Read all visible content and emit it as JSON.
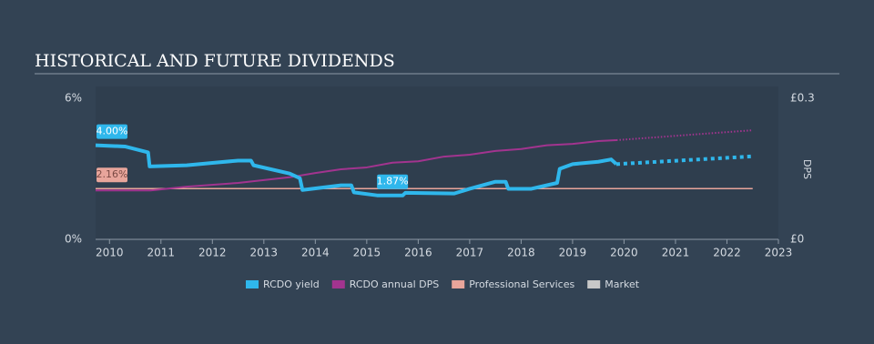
{
  "chart_data": {
    "type": "line",
    "title": "HISTORICAL AND FUTURE DIVIDENDS",
    "y2_label": "DPS",
    "xlim": [
      2009.73,
      2023
    ],
    "xticks": [
      2010,
      2011,
      2012,
      2013,
      2014,
      2015,
      2016,
      2017,
      2018,
      2019,
      2020,
      2021,
      2022,
      2023
    ],
    "ylim": [
      0,
      6
    ],
    "yticks": [
      {
        "value": 0,
        "label": "0%"
      },
      {
        "value": 6,
        "label": "6%"
      }
    ],
    "y2lim": [
      0,
      0.3
    ],
    "y2ticks": [
      {
        "value": 0,
        "label": "£0"
      },
      {
        "value": 0.3,
        "label": "£0.3"
      }
    ],
    "legend": "bottom",
    "series": [
      {
        "name": "RCDO yield",
        "color": "#2fb7ec",
        "axis": "y",
        "x": [
          2009.73,
          2010.3,
          2010.75,
          2010.78,
          2011.5,
          2012,
          2012.5,
          2012.75,
          2012.8,
          2013.5,
          2013.7,
          2013.75,
          2014.5,
          2014.7,
          2014.75,
          2015.2,
          2015.7,
          2015.75,
          2016.7,
          2017,
          2017.5,
          2017.7,
          2017.75,
          2018.2,
          2018.7,
          2018.75,
          2019,
          2019.5,
          2019.75,
          2019.85
        ],
        "values": [
          4.0,
          3.95,
          3.7,
          3.1,
          3.15,
          3.25,
          3.35,
          3.35,
          3.15,
          2.8,
          2.6,
          2.1,
          2.3,
          2.3,
          2.0,
          1.87,
          1.87,
          1.98,
          1.95,
          2.15,
          2.45,
          2.45,
          2.15,
          2.15,
          2.4,
          3.0,
          3.2,
          3.3,
          3.4,
          3.2
        ],
        "forecast": {
          "x": [
            2019.85,
            2022.5
          ],
          "values": [
            3.2,
            3.53
          ]
        },
        "annotations": [
          {
            "x": 2009.73,
            "value": 4.0,
            "label": "4.00%"
          },
          {
            "x": 2015.5,
            "value": 1.87,
            "label": "1.87%"
          }
        ]
      },
      {
        "name": "RCDO annual DPS",
        "color": "#a2348f",
        "axis": "y2",
        "x": [
          2009.73,
          2010.8,
          2011.5,
          2012.5,
          2013.5,
          2014,
          2014.5,
          2015,
          2015.5,
          2016,
          2016.5,
          2017,
          2017.5,
          2018,
          2018.5,
          2019,
          2019.5,
          2019.85
        ],
        "values": [
          0.104,
          0.104,
          0.112,
          0.12,
          0.132,
          0.141,
          0.149,
          0.153,
          0.163,
          0.166,
          0.176,
          0.18,
          0.188,
          0.192,
          0.2,
          0.203,
          0.209,
          0.211
        ],
        "forecast": {
          "x": [
            2019.85,
            2022.5
          ],
          "values": [
            0.211,
            0.232
          ]
        }
      },
      {
        "name": "Professional Services",
        "color": "#e8a59b",
        "axis": "y",
        "x": [
          2009.73,
          2022.5
        ],
        "values": [
          2.16,
          2.16
        ],
        "annotations": [
          {
            "x": 2009.73,
            "value": 2.16,
            "label": "2.16%"
          }
        ]
      },
      {
        "name": "Market",
        "color": "#c8c8c8",
        "axis": "y",
        "x": [],
        "values": []
      }
    ]
  }
}
